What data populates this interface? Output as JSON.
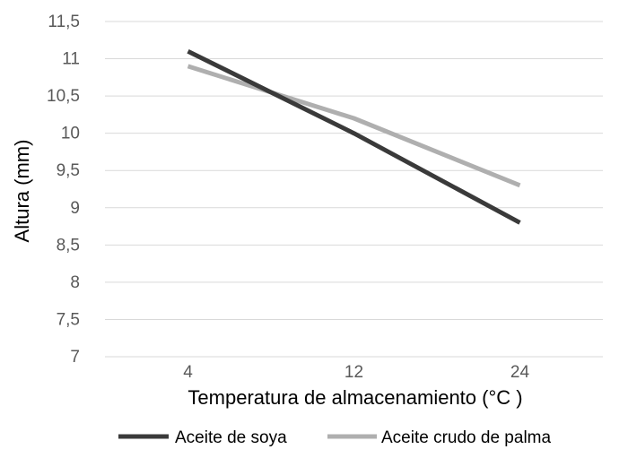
{
  "chart_data": {
    "type": "line",
    "categories": [
      "4",
      "12",
      "24"
    ],
    "series": [
      {
        "name": "Aceite de soya",
        "values": [
          11.1,
          10.0,
          8.8
        ],
        "color": "#3a3a3a"
      },
      {
        "name": "Aceite crudo de palma",
        "values": [
          10.9,
          10.2,
          9.3
        ],
        "color": "#afafaf"
      }
    ],
    "xlabel": "Temperatura de almacenamiento (°C )",
    "ylabel": "Altura (mm)",
    "ylim": [
      7,
      11.5
    ],
    "yticks": [
      "7",
      "7,5",
      "8",
      "8,5",
      "9",
      "9,5",
      "10",
      "10,5",
      "11",
      "11,5"
    ],
    "grid": "horizontal",
    "legend": "bottom"
  }
}
